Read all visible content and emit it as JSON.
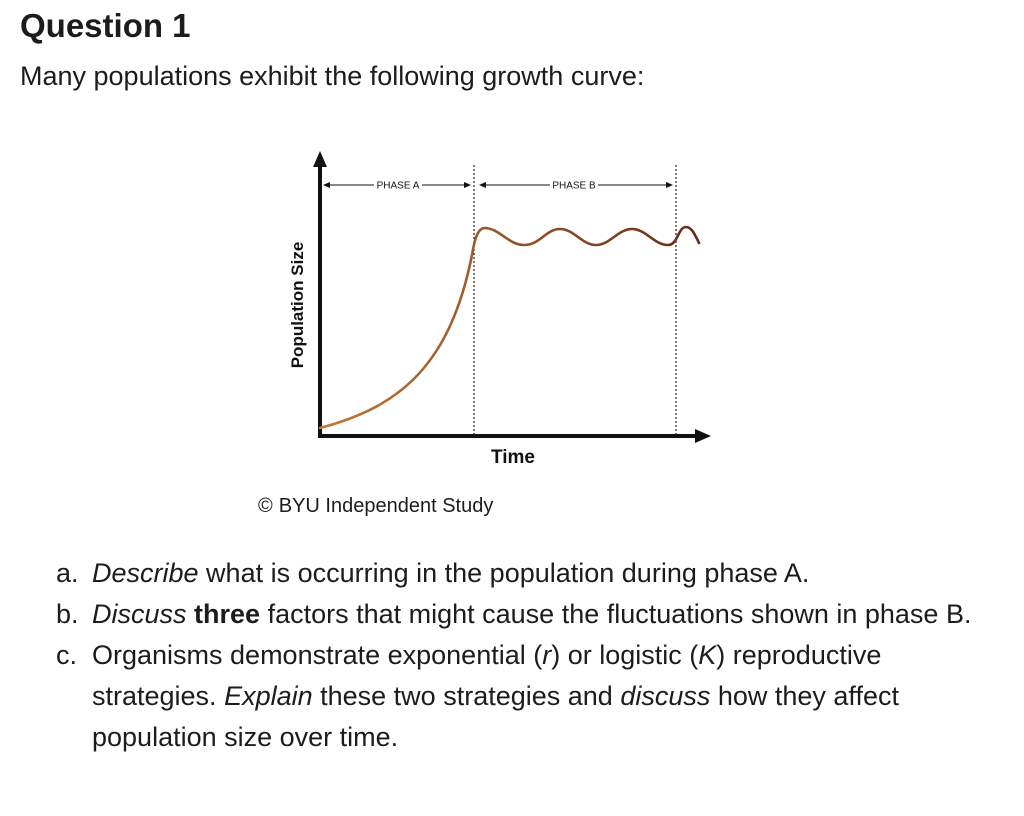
{
  "question": {
    "title": "Question 1",
    "intro": "Many populations exhibit the following growth curve:"
  },
  "chart_data": {
    "type": "line",
    "xlabel": "Time",
    "ylabel": "Population Size",
    "phases": [
      {
        "label": "PHASE A"
      },
      {
        "label": "PHASE B"
      }
    ],
    "colors": {
      "curve_start": "#c07a3a",
      "curve_end": "#6a2a14",
      "axes": "#111111"
    }
  },
  "copyright": {
    "symbol": "©",
    "text": "BYU Independent Study"
  },
  "parts": {
    "a": {
      "marker": "a.",
      "italic": "Describe",
      "text": " what is occurring in the population during phase A."
    },
    "b": {
      "marker": "b.",
      "italic": "Discuss",
      "bold": "three",
      "text": " factors that might cause the fluctuations shown in phase B."
    },
    "c": {
      "marker": "c.",
      "text1": "Organisms demonstrate exponential (",
      "r": "r",
      "text2": ") or logistic (",
      "k": "K",
      "text3": ") reproductive strategies. ",
      "italic1": "Explain",
      "text4": " these two strategies and ",
      "italic2": "discuss",
      "text5": " how they affect population size over time."
    }
  }
}
